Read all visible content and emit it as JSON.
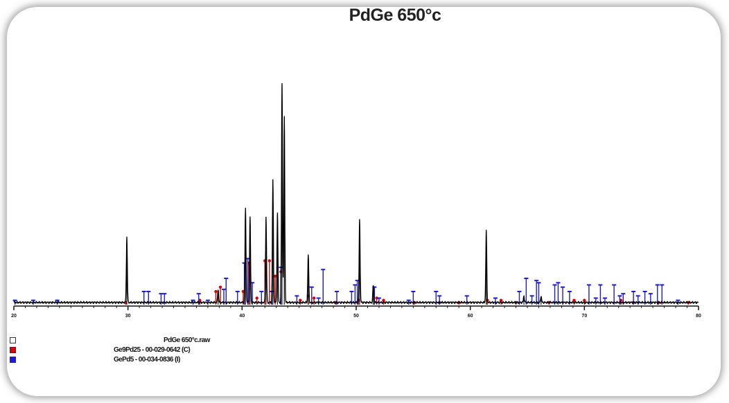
{
  "title": "PdGe 650°c",
  "chart_data": {
    "type": "line",
    "title": "PdGe 650°c",
    "xlabel": "",
    "ylabel": "",
    "xlim": [
      20,
      80
    ],
    "ylim": [
      0,
      100
    ],
    "x_ticks": [
      20,
      30,
      40,
      50,
      60,
      70,
      80
    ],
    "grid": false,
    "legend_position": "bottom-left",
    "colors": {
      "observed": "#000000",
      "Ge9Pd25": "#e00000",
      "GePd5": "#1a1ae0"
    },
    "series": [
      {
        "name": "PdGe 650°c.raw",
        "kind": "observed-pattern",
        "baseline": 1.0,
        "peaks": [
          {
            "x": 29.9,
            "y": 30
          },
          {
            "x": 37.9,
            "y": 6
          },
          {
            "x": 40.3,
            "y": 43
          },
          {
            "x": 40.7,
            "y": 39
          },
          {
            "x": 42.1,
            "y": 39
          },
          {
            "x": 42.7,
            "y": 56
          },
          {
            "x": 43.1,
            "y": 41
          },
          {
            "x": 43.5,
            "y": 100
          },
          {
            "x": 43.7,
            "y": 85
          },
          {
            "x": 45.8,
            "y": 22
          },
          {
            "x": 50.3,
            "y": 38
          },
          {
            "x": 51.5,
            "y": 8
          },
          {
            "x": 61.4,
            "y": 33
          },
          {
            "x": 64.7,
            "y": 3
          },
          {
            "x": 66.2,
            "y": 3
          }
        ]
      },
      {
        "name": "Ge9Pd25 - 00-029-0642 (C)",
        "kind": "reference-sticks",
        "sticks": [
          {
            "x": 29.8,
            "y": 1
          },
          {
            "x": 36.3,
            "y": 2
          },
          {
            "x": 37.7,
            "y": 6
          },
          {
            "x": 38.1,
            "y": 8
          },
          {
            "x": 40.1,
            "y": 6
          },
          {
            "x": 40.6,
            "y": 19
          },
          {
            "x": 41.3,
            "y": 3
          },
          {
            "x": 42.0,
            "y": 20
          },
          {
            "x": 42.4,
            "y": 20
          },
          {
            "x": 42.9,
            "y": 13
          },
          {
            "x": 43.4,
            "y": 15
          },
          {
            "x": 45.1,
            "y": 2
          },
          {
            "x": 45.8,
            "y": 4
          },
          {
            "x": 46.3,
            "y": 3
          },
          {
            "x": 48.2,
            "y": 1
          },
          {
            "x": 50.2,
            "y": 2
          },
          {
            "x": 51.8,
            "y": 3
          },
          {
            "x": 52.4,
            "y": 2
          },
          {
            "x": 55.1,
            "y": 1
          },
          {
            "x": 57.3,
            "y": 1
          },
          {
            "x": 59.0,
            "y": 1
          },
          {
            "x": 61.5,
            "y": 2
          },
          {
            "x": 62.7,
            "y": 2
          },
          {
            "x": 64.0,
            "y": 1
          },
          {
            "x": 66.9,
            "y": 1
          },
          {
            "x": 69.1,
            "y": 2
          },
          {
            "x": 70.0,
            "y": 2
          },
          {
            "x": 73.2,
            "y": 2
          },
          {
            "x": 74.3,
            "y": 1
          },
          {
            "x": 76.5,
            "y": 1
          },
          {
            "x": 79.1,
            "y": 1
          }
        ]
      },
      {
        "name": "GePd5 - 00-034-0836 (I)",
        "kind": "reference-sticks",
        "sticks": [
          {
            "x": 20.1,
            "y": 2
          },
          {
            "x": 21.7,
            "y": 2
          },
          {
            "x": 23.8,
            "y": 2
          },
          {
            "x": 31.4,
            "y": 6
          },
          {
            "x": 31.8,
            "y": 6
          },
          {
            "x": 32.9,
            "y": 5
          },
          {
            "x": 33.2,
            "y": 5
          },
          {
            "x": 35.7,
            "y": 2
          },
          {
            "x": 36.2,
            "y": 5
          },
          {
            "x": 37.0,
            "y": 2
          },
          {
            "x": 38.4,
            "y": 7
          },
          {
            "x": 38.6,
            "y": 12
          },
          {
            "x": 39.6,
            "y": 6
          },
          {
            "x": 40.2,
            "y": 19
          },
          {
            "x": 40.5,
            "y": 21
          },
          {
            "x": 40.9,
            "y": 10
          },
          {
            "x": 41.7,
            "y": 6
          },
          {
            "x": 42.6,
            "y": 6
          },
          {
            "x": 43.4,
            "y": 17
          },
          {
            "x": 44.8,
            "y": 4
          },
          {
            "x": 46.1,
            "y": 8
          },
          {
            "x": 46.7,
            "y": 3
          },
          {
            "x": 47.1,
            "y": 16
          },
          {
            "x": 48.3,
            "y": 6
          },
          {
            "x": 49.6,
            "y": 6
          },
          {
            "x": 49.9,
            "y": 9
          },
          {
            "x": 50.1,
            "y": 11
          },
          {
            "x": 51.6,
            "y": 8
          },
          {
            "x": 52.0,
            "y": 3
          },
          {
            "x": 54.6,
            "y": 2
          },
          {
            "x": 55.0,
            "y": 6
          },
          {
            "x": 57.0,
            "y": 6
          },
          {
            "x": 57.3,
            "y": 4
          },
          {
            "x": 59.7,
            "y": 4
          },
          {
            "x": 62.2,
            "y": 3
          },
          {
            "x": 64.3,
            "y": 6
          },
          {
            "x": 64.9,
            "y": 12
          },
          {
            "x": 65.4,
            "y": 4
          },
          {
            "x": 65.8,
            "y": 11
          },
          {
            "x": 66.0,
            "y": 10
          },
          {
            "x": 67.4,
            "y": 9
          },
          {
            "x": 67.7,
            "y": 10
          },
          {
            "x": 68.1,
            "y": 8
          },
          {
            "x": 68.7,
            "y": 6
          },
          {
            "x": 70.4,
            "y": 9
          },
          {
            "x": 71.0,
            "y": 3
          },
          {
            "x": 71.4,
            "y": 9
          },
          {
            "x": 71.8,
            "y": 3
          },
          {
            "x": 72.6,
            "y": 9
          },
          {
            "x": 73.1,
            "y": 4
          },
          {
            "x": 73.4,
            "y": 5
          },
          {
            "x": 74.3,
            "y": 6
          },
          {
            "x": 74.7,
            "y": 4
          },
          {
            "x": 75.3,
            "y": 6
          },
          {
            "x": 75.8,
            "y": 5
          },
          {
            "x": 76.4,
            "y": 9
          },
          {
            "x": 76.8,
            "y": 9
          },
          {
            "x": 78.2,
            "y": 2
          }
        ]
      }
    ]
  },
  "legend": {
    "observed_label": "PdGe 650°c.raw",
    "ref1_label": "Ge9Pd25 - 00-029-0642 (C)",
    "ref2_label": "GePd5 - 00-034-0836 (I)"
  }
}
